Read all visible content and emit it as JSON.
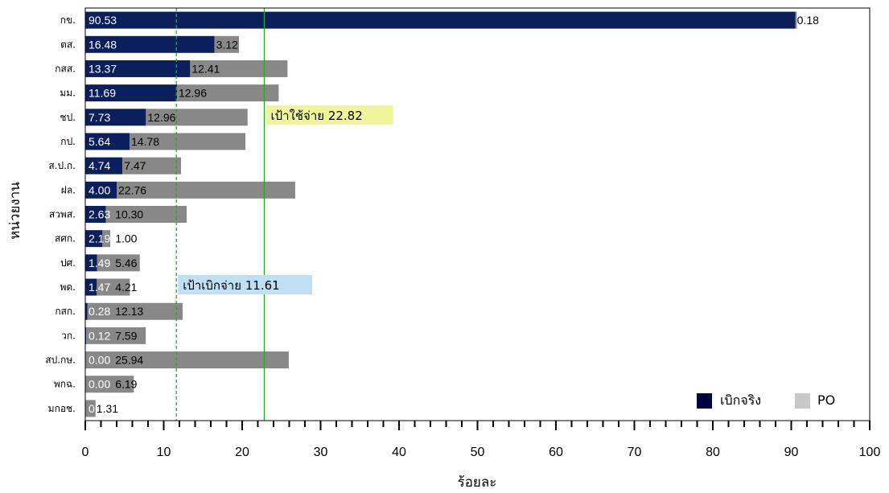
{
  "chart_data": {
    "type": "bar",
    "orientation": "horizontal",
    "stacked": true,
    "categories": [
      "กข.",
      "ตส.",
      "กสส.",
      "มม.",
      "ชป.",
      "กป.",
      "ส.ป.ก.",
      "ฝล.",
      "สวพส.",
      "สศก.",
      "ปศ.",
      "พด.",
      "กสก.",
      "วก.",
      "สป.กษ.",
      "พกฉ.",
      "มกอช."
    ],
    "series": [
      {
        "name": "เบิกจริง",
        "color": "#0a1f5c",
        "values": [
          90.53,
          16.48,
          13.37,
          11.69,
          7.73,
          5.64,
          4.74,
          4.0,
          2.63,
          2.19,
          1.49,
          1.47,
          0.28,
          0.12,
          0.0,
          0.0,
          0.0
        ],
        "labels": [
          "90.53",
          "16.48",
          "13.37",
          "11.69",
          "7.73",
          "5.64",
          "4.74",
          "4.00",
          "2.63",
          "2.19",
          "1.49",
          "1.47",
          "0.28",
          "0.12",
          "0.00",
          "0.00",
          "0"
        ]
      },
      {
        "name": "PO",
        "color": "#888888",
        "values": [
          0.18,
          3.12,
          12.41,
          12.96,
          12.96,
          14.78,
          7.47,
          22.76,
          10.3,
          1.0,
          5.46,
          4.21,
          12.13,
          7.59,
          25.94,
          6.19,
          1.31
        ],
        "labels": [
          "0.18",
          "3.12",
          "12.41",
          "12.96",
          "12.96",
          "14.78",
          "7.47",
          "22.76",
          "10.30",
          "1.00",
          "5.46",
          "4.21",
          "12.13",
          "7.59",
          "25.94",
          "6.19",
          "1.31"
        ]
      }
    ],
    "xlabel": "ร้อยละ",
    "ylabel": "หน่วยงาน",
    "xlim": [
      0,
      100
    ],
    "xticks": [
      0,
      10,
      20,
      30,
      40,
      50,
      60,
      70,
      80,
      90,
      100
    ],
    "grid": false,
    "legend_position": "bottom-right",
    "reference_lines": [
      {
        "value": 11.61,
        "style": "dashed",
        "color": "#22aa22",
        "label": "เป้าเบิกจ่าย 11.61",
        "label_bg": "#bfe0f3"
      },
      {
        "value": 22.82,
        "style": "solid",
        "color": "#22aa22",
        "label": "เป้าใช้จ่าย 22.82",
        "label_bg": "#eef59a"
      }
    ]
  }
}
